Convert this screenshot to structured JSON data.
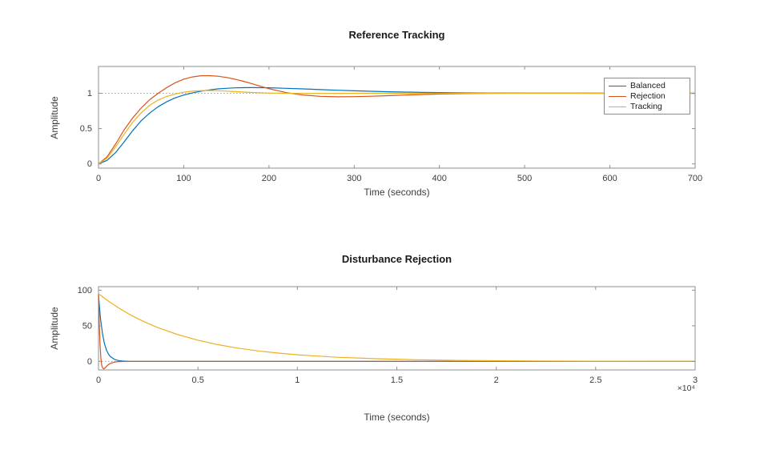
{
  "window": {
    "background": "#ffffff"
  },
  "colors": {
    "axis": "#8f8f8f",
    "tick_text": "#3d3d3d",
    "title": "#1a1a1a",
    "reference_line": "#8a8a8a"
  },
  "chart_data": [
    {
      "type": "line",
      "title": "Reference Tracking",
      "xlabel": "Time (seconds)",
      "ylabel": "Amplitude",
      "xlim": [
        0,
        700
      ],
      "ylim": [
        -0.06,
        1.38
      ],
      "xticks": [
        0,
        100,
        200,
        300,
        400,
        500,
        600,
        700
      ],
      "xtick_labels": [
        "0",
        "100",
        "200",
        "300",
        "400",
        "500",
        "600",
        "700"
      ],
      "yticks": [
        0,
        0.5,
        1
      ],
      "ytick_labels": [
        "0",
        "0.5",
        "1"
      ],
      "grid": false,
      "ref_lines": [
        1
      ],
      "legend": {
        "position": "northeast",
        "entries": [
          "Balanced",
          "Rejection",
          "Tracking"
        ]
      },
      "series": [
        {
          "name": "Balanced",
          "color": "#0072BD",
          "x": [
            0,
            10,
            20,
            30,
            40,
            50,
            60,
            70,
            80,
            90,
            100,
            110,
            120,
            130,
            140,
            150,
            160,
            170,
            180,
            190,
            200,
            220,
            240,
            260,
            280,
            300,
            320,
            340,
            360,
            380,
            400,
            430,
            460,
            500,
            550,
            600,
            650,
            700
          ],
          "y": [
            0,
            0.05,
            0.16,
            0.31,
            0.47,
            0.61,
            0.72,
            0.81,
            0.88,
            0.935,
            0.975,
            1.005,
            1.03,
            1.048,
            1.062,
            1.071,
            1.077,
            1.08,
            1.081,
            1.08,
            1.078,
            1.071,
            1.062,
            1.052,
            1.043,
            1.035,
            1.028,
            1.022,
            1.017,
            1.013,
            1.01,
            1.006,
            1.004,
            1.002,
            1.001,
            1.0,
            1.0,
            1.0
          ]
        },
        {
          "name": "Rejection",
          "color": "#D95319",
          "x": [
            0,
            10,
            20,
            30,
            40,
            50,
            60,
            70,
            80,
            90,
            100,
            110,
            120,
            130,
            140,
            150,
            160,
            170,
            180,
            190,
            200,
            220,
            240,
            260,
            280,
            300,
            320,
            340,
            360,
            380,
            400,
            430,
            460,
            500,
            550,
            600,
            650,
            700
          ],
          "y": [
            0,
            0.1,
            0.28,
            0.48,
            0.65,
            0.79,
            0.91,
            1.0,
            1.08,
            1.15,
            1.2,
            1.232,
            1.248,
            1.25,
            1.242,
            1.225,
            1.2,
            1.17,
            1.135,
            1.1,
            1.065,
            1.01,
            0.975,
            0.957,
            0.95,
            0.952,
            0.958,
            0.966,
            0.975,
            0.983,
            0.99,
            0.996,
            1.0,
            1.002,
            1.002,
            1.001,
            1.0,
            1.0
          ]
        },
        {
          "name": "Tracking",
          "color": "#EDB120",
          "x": [
            0,
            10,
            20,
            30,
            40,
            50,
            60,
            70,
            80,
            90,
            100,
            110,
            120,
            130,
            140,
            150,
            160,
            170,
            180,
            190,
            200,
            220,
            240,
            260,
            280,
            300,
            320,
            340,
            360,
            380,
            400,
            430,
            460,
            500,
            550,
            600,
            650,
            700
          ],
          "y": [
            0,
            0.08,
            0.24,
            0.42,
            0.59,
            0.72,
            0.83,
            0.905,
            0.955,
            0.99,
            1.015,
            1.03,
            1.038,
            1.04,
            1.037,
            1.031,
            1.024,
            1.017,
            1.012,
            1.007,
            1.004,
            1.0,
            0.998,
            0.998,
            0.999,
            1.0,
            1.0,
            1.0,
            1.0,
            1.0,
            1.0,
            1.0,
            1.0,
            1.0,
            1.0,
            1.0,
            1.0,
            1.0
          ]
        }
      ]
    },
    {
      "type": "line",
      "title": "Disturbance Rejection",
      "xlabel": "Time (seconds)",
      "ylabel": "Amplitude",
      "x_scale_label": "×10⁴",
      "xlim": [
        0,
        30000
      ],
      "ylim": [
        -12,
        105
      ],
      "xticks": [
        0,
        5000,
        10000,
        15000,
        20000,
        25000,
        30000
      ],
      "xtick_labels": [
        "0",
        "0.5",
        "1",
        "1.5",
        "2",
        "2.5",
        "3"
      ],
      "yticks": [
        0,
        50,
        100
      ],
      "ytick_labels": [
        "0",
        "50",
        "100"
      ],
      "grid": false,
      "ref_lines": [
        0
      ],
      "legend": null,
      "series": [
        {
          "name": "Balanced",
          "color": "#0072BD",
          "x": [
            0,
            100,
            200,
            300,
            400,
            500,
            600,
            800,
            1000,
            1200,
            1500,
            2000,
            3000,
            5000,
            10000,
            20000,
            30000
          ],
          "y": [
            93,
            60,
            39,
            25,
            16,
            10.4,
            6.7,
            2.8,
            1.2,
            0.5,
            0.15,
            0,
            0,
            0,
            0,
            0,
            0
          ]
        },
        {
          "name": "Rejection",
          "color": "#D95319",
          "x": [
            0,
            40,
            80,
            120,
            160,
            200,
            260,
            320,
            400,
            500,
            600,
            800,
            1000,
            1500,
            2000,
            5000,
            30000
          ],
          "y": [
            95,
            52,
            22,
            4,
            -5,
            -9,
            -10.5,
            -9.5,
            -7,
            -4.5,
            -2.8,
            -1,
            -0.3,
            0,
            0,
            0,
            0
          ]
        },
        {
          "name": "Tracking",
          "color": "#EDB120",
          "x": [
            0,
            500,
            1000,
            1500,
            2000,
            2500,
            3000,
            4000,
            5000,
            6000,
            7000,
            8000,
            9000,
            10000,
            12000,
            14000,
            16000,
            18000,
            20000,
            22000,
            25000,
            28000,
            30000
          ],
          "y": [
            95,
            84.6,
            75.3,
            67,
            59.7,
            53.1,
            47.3,
            37.5,
            29.7,
            23.5,
            18.6,
            14.8,
            11.7,
            9.3,
            5.8,
            3.7,
            2.3,
            1.4,
            0.9,
            0.6,
            0.3,
            0.15,
            0.1
          ]
        }
      ]
    }
  ]
}
